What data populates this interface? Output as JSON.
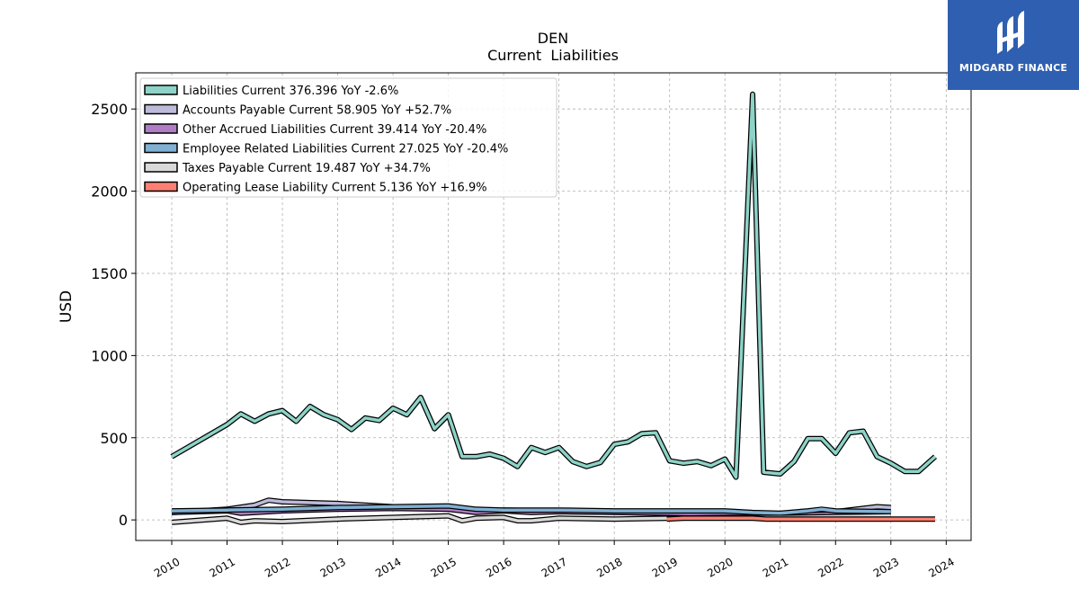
{
  "header": {
    "ticker": "DEN",
    "title": "Current  Liabilities"
  },
  "brand": {
    "name": "MIDGARD FINANCE",
    "bg_color": "#2f5fb0"
  },
  "chart_data": {
    "type": "line",
    "title": "DEN",
    "subtitle": "Current  Liabilities",
    "xlabel": "",
    "ylabel": "USD",
    "xlim": [
      2009.35,
      2024.45
    ],
    "ylim": [
      -125,
      2720
    ],
    "x_ticks": [
      "2010",
      "2011",
      "2012",
      "2013",
      "2014",
      "2015",
      "2016",
      "2017",
      "2018",
      "2019",
      "2020",
      "2021",
      "2022",
      "2023",
      "2024"
    ],
    "y_ticks": [
      "0",
      "500",
      "1000",
      "1500",
      "2000",
      "2500"
    ],
    "y_tick_values": [
      0,
      500,
      1000,
      1500,
      2000,
      2500
    ],
    "grid": true,
    "legend_position": "upper-left",
    "series": [
      {
        "name": "Liabilities Current",
        "legend": "Liabilities Current  376.396 YoY -2.6%",
        "color": "#8dd3c7",
        "points": [
          [
            2010.0,
            385
          ],
          [
            2011.0,
            580
          ],
          [
            2011.25,
            645
          ],
          [
            2011.5,
            600
          ],
          [
            2011.75,
            645
          ],
          [
            2012.0,
            665
          ],
          [
            2012.25,
            600
          ],
          [
            2012.5,
            690
          ],
          [
            2012.75,
            640
          ],
          [
            2013.0,
            610
          ],
          [
            2013.25,
            550
          ],
          [
            2013.5,
            620
          ],
          [
            2013.75,
            605
          ],
          [
            2014.0,
            680
          ],
          [
            2014.25,
            640
          ],
          [
            2014.5,
            745
          ],
          [
            2014.75,
            555
          ],
          [
            2015.0,
            640
          ],
          [
            2015.25,
            385
          ],
          [
            2015.5,
            385
          ],
          [
            2015.75,
            400
          ],
          [
            2016.0,
            375
          ],
          [
            2016.25,
            325
          ],
          [
            2016.5,
            440
          ],
          [
            2016.75,
            410
          ],
          [
            2017.0,
            440
          ],
          [
            2017.25,
            355
          ],
          [
            2017.5,
            325
          ],
          [
            2017.75,
            350
          ],
          [
            2018.0,
            460
          ],
          [
            2018.25,
            475
          ],
          [
            2018.5,
            525
          ],
          [
            2018.75,
            530
          ],
          [
            2019.0,
            360
          ],
          [
            2019.25,
            345
          ],
          [
            2019.5,
            355
          ],
          [
            2019.75,
            330
          ],
          [
            2020.0,
            370
          ],
          [
            2020.2,
            260
          ],
          [
            2020.5,
            2590
          ],
          [
            2020.7,
            290
          ],
          [
            2021.0,
            280
          ],
          [
            2021.25,
            355
          ],
          [
            2021.5,
            495
          ],
          [
            2021.75,
            495
          ],
          [
            2022.0,
            405
          ],
          [
            2022.25,
            530
          ],
          [
            2022.5,
            540
          ],
          [
            2022.75,
            385
          ],
          [
            2023.0,
            345
          ],
          [
            2023.25,
            295
          ],
          [
            2023.5,
            295
          ],
          [
            2023.8,
            385
          ]
        ]
      },
      {
        "name": "Accounts Payable Current",
        "legend": "Accounts Payable Current  58.905 YoY +52.7%",
        "color": "#bebada",
        "points": [
          [
            2010.0,
            45
          ],
          [
            2011.0,
            65
          ],
          [
            2011.5,
            90
          ],
          [
            2011.75,
            120
          ],
          [
            2012.0,
            110
          ],
          [
            2013.0,
            100
          ],
          [
            2014.0,
            80
          ],
          [
            2015.0,
            80
          ],
          [
            2015.5,
            50
          ],
          [
            2016.0,
            60
          ],
          [
            2017.0,
            55
          ],
          [
            2018.0,
            50
          ],
          [
            2019.0,
            45
          ],
          [
            2020.0,
            40
          ],
          [
            2021.0,
            35
          ],
          [
            2022.0,
            50
          ],
          [
            2022.75,
            80
          ],
          [
            2023.0,
            75
          ]
        ]
      },
      {
        "name": "Other Accrued Liabilities Current",
        "legend": "Other Accrued Liabilities Current  39.414 YoY -20.4%",
        "color": "#b07cc6",
        "points": [
          [
            2010.0,
            45
          ],
          [
            2011.0,
            55
          ],
          [
            2011.25,
            40
          ],
          [
            2012.0,
            55
          ],
          [
            2013.0,
            65
          ],
          [
            2014.0,
            70
          ],
          [
            2015.0,
            65
          ],
          [
            2015.5,
            45
          ],
          [
            2016.0,
            55
          ],
          [
            2016.5,
            45
          ],
          [
            2017.0,
            50
          ],
          [
            2018.0,
            45
          ],
          [
            2019.0,
            40
          ],
          [
            2020.0,
            35
          ],
          [
            2021.0,
            30
          ],
          [
            2022.0,
            35
          ],
          [
            2022.75,
            50
          ],
          [
            2023.0,
            40
          ]
        ]
      },
      {
        "name": "Employee Related Liabilities Current",
        "legend": "Employee Related Liabilities Current  27.025 YoY -20.4%",
        "color": "#80b1d3",
        "points": [
          [
            2010.0,
            55
          ],
          [
            2011.0,
            60
          ],
          [
            2012.0,
            65
          ],
          [
            2013.0,
            75
          ],
          [
            2014.0,
            80
          ],
          [
            2015.0,
            85
          ],
          [
            2015.5,
            65
          ],
          [
            2016.0,
            60
          ],
          [
            2017.0,
            60
          ],
          [
            2018.0,
            55
          ],
          [
            2019.0,
            55
          ],
          [
            2020.0,
            55
          ],
          [
            2020.5,
            45
          ],
          [
            2021.0,
            40
          ],
          [
            2021.5,
            55
          ],
          [
            2021.75,
            65
          ],
          [
            2022.0,
            55
          ],
          [
            2023.0,
            50
          ]
        ]
      },
      {
        "name": "Taxes Payable Current",
        "legend": "Taxes Payable Current  19.487 YoY +34.7%",
        "color": "#d9d9d9",
        "points": [
          [
            2010.0,
            -15
          ],
          [
            2011.0,
            10
          ],
          [
            2011.25,
            -15
          ],
          [
            2011.5,
            -5
          ],
          [
            2012.0,
            -10
          ],
          [
            2013.0,
            5
          ],
          [
            2014.0,
            15
          ],
          [
            2015.0,
            25
          ],
          [
            2015.25,
            -5
          ],
          [
            2015.5,
            10
          ],
          [
            2016.0,
            15
          ],
          [
            2016.25,
            -5
          ],
          [
            2016.5,
            -5
          ],
          [
            2017.0,
            10
          ],
          [
            2018.0,
            5
          ],
          [
            2019.0,
            10
          ],
          [
            2020.0,
            15
          ],
          [
            2021.0,
            15
          ],
          [
            2022.0,
            20
          ],
          [
            2023.0,
            25
          ]
        ]
      },
      {
        "name": "Operating Lease Liability Current",
        "legend": "Operating Lease Liability Current  5.136 YoY +16.9%",
        "color": "#fb8072",
        "points": [
          [
            2018.95,
            5
          ],
          [
            2019.25,
            10
          ],
          [
            2020.0,
            10
          ],
          [
            2020.5,
            10
          ],
          [
            2020.75,
            5
          ],
          [
            2021.0,
            5
          ],
          [
            2022.0,
            5
          ],
          [
            2023.8,
            5
          ]
        ]
      }
    ]
  }
}
